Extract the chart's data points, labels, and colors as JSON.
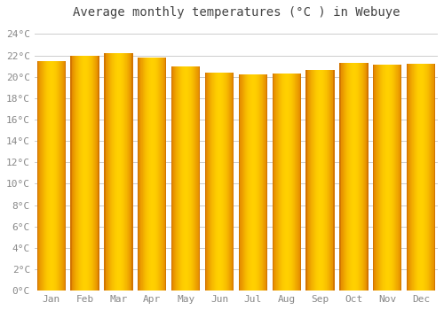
{
  "title": "Average monthly temperatures (°C ) in Webuye",
  "months": [
    "Jan",
    "Feb",
    "Mar",
    "Apr",
    "May",
    "Jun",
    "Jul",
    "Aug",
    "Sep",
    "Oct",
    "Nov",
    "Dec"
  ],
  "values": [
    21.5,
    22.0,
    22.2,
    21.8,
    21.0,
    20.4,
    20.2,
    20.3,
    20.6,
    21.3,
    21.1,
    21.2
  ],
  "bar_color_left": "#E08000",
  "bar_color_center": "#FFD000",
  "bar_color_right": "#E08000",
  "bar_edge_color": "#CC7000",
  "background_color": "#FFFFFF",
  "plot_bg_color": "#FFFFFF",
  "grid_color": "#CCCCCC",
  "ylim": [
    0,
    25
  ],
  "yticks": [
    0,
    2,
    4,
    6,
    8,
    10,
    12,
    14,
    16,
    18,
    20,
    22,
    24
  ],
  "title_fontsize": 10,
  "tick_fontsize": 8,
  "title_color": "#444444",
  "tick_color": "#888888"
}
